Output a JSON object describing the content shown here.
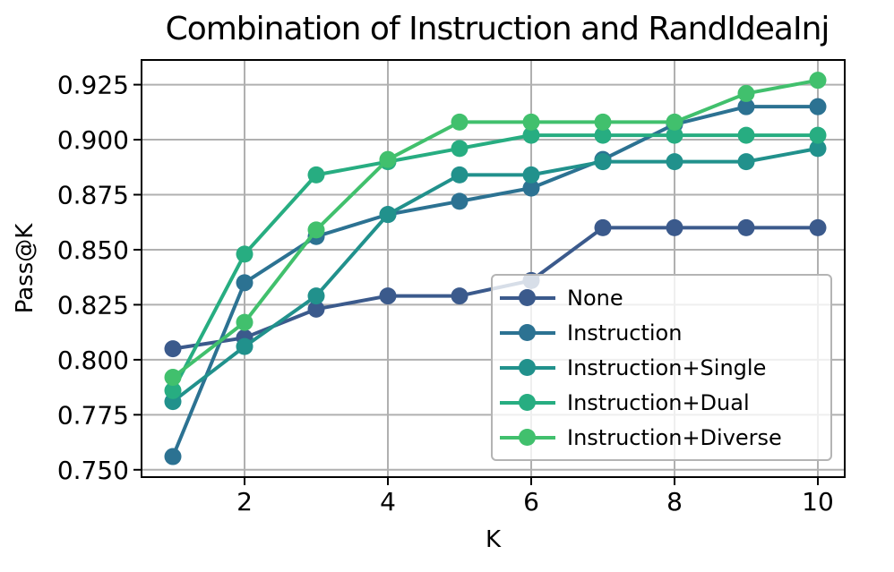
{
  "title": "Combination of Instruction and RandIdeaInj",
  "axes": {
    "xlabel": "K",
    "ylabel": "Pass@K",
    "xticks": [
      "2",
      "4",
      "6",
      "8",
      "10"
    ],
    "yticks": [
      "0.750",
      "0.775",
      "0.800",
      "0.825",
      "0.850",
      "0.875",
      "0.900",
      "0.925"
    ]
  },
  "legend": {
    "items": [
      "None",
      "Instruction",
      "Instruction+Single",
      "Instruction+Dual",
      "Instruction+Diverse"
    ]
  },
  "colors": {
    "grid": "#b0b0b0",
    "spine": "#000000",
    "none": "#3b5a8c",
    "instruction": "#2c7292",
    "instruction_single": "#21918c",
    "instruction_dual": "#27ad81",
    "instruction_diverse": "#41c06d"
  },
  "chart_data": {
    "type": "line",
    "title": "Combination of Instruction and RandIdeaInj",
    "xlabel": "K",
    "ylabel": "Pass@K",
    "grid": true,
    "legend_position": "lower right inside axes",
    "x": [
      1,
      2,
      3,
      4,
      5,
      6,
      7,
      8,
      9,
      10
    ],
    "xtick_values": [
      2,
      4,
      6,
      8,
      10
    ],
    "ytick_values": [
      0.75,
      0.775,
      0.8,
      0.825,
      0.85,
      0.875,
      0.9,
      0.925
    ],
    "xlim": [
      0.56,
      10.38
    ],
    "ylim": [
      0.747,
      0.936
    ],
    "marker": "o",
    "series": [
      {
        "name": "None",
        "color": "#3b5a8c",
        "values": [
          0.805,
          0.81,
          0.823,
          0.829,
          0.829,
          0.836,
          0.86,
          0.86,
          0.86,
          0.86
        ]
      },
      {
        "name": "Instruction",
        "color": "#2c7292",
        "values": [
          0.756,
          0.835,
          0.856,
          0.866,
          0.872,
          0.878,
          0.891,
          0.907,
          0.915,
          0.915
        ]
      },
      {
        "name": "Instruction+Single",
        "color": "#21918c",
        "values": [
          0.781,
          0.806,
          0.829,
          0.866,
          0.884,
          0.884,
          0.89,
          0.89,
          0.89,
          0.896
        ]
      },
      {
        "name": "Instruction+Dual",
        "color": "#27ad81",
        "values": [
          0.786,
          0.848,
          0.884,
          0.89,
          0.896,
          0.902,
          0.902,
          0.902,
          0.902,
          0.902
        ]
      },
      {
        "name": "Instruction+Diverse",
        "color": "#41c06d",
        "values": [
          0.792,
          0.817,
          0.859,
          0.891,
          0.908,
          0.908,
          0.908,
          0.908,
          0.921,
          0.927
        ]
      }
    ]
  }
}
